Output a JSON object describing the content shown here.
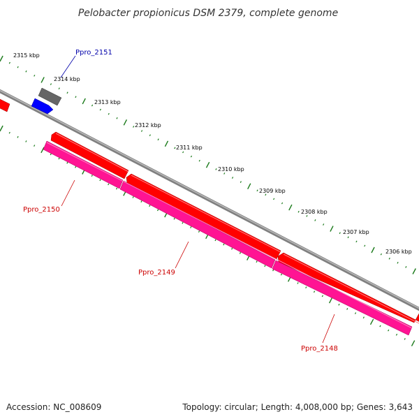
{
  "title": "Pelobacter propionicus DSM 2379, complete genome",
  "footer": {
    "accession": "Accession: NC_008609",
    "summary": "Topology: circular; Length: 4,008,000 bp; Genes: 3,643"
  },
  "ticks": [
    {
      "label": "2315 kbp"
    },
    {
      "label": "2314 kbp"
    },
    {
      "label": "2313 kbp"
    },
    {
      "label": "2312 kbp"
    },
    {
      "label": "2311 kbp"
    },
    {
      "label": "2310 kbp"
    },
    {
      "label": "2309 kbp"
    },
    {
      "label": "2308 kbp"
    },
    {
      "label": "2307 kbp"
    },
    {
      "label": "2306 kbp"
    }
  ],
  "genes": [
    {
      "name": "Ppro_2151",
      "color": "#0000aa"
    },
    {
      "name": "Ppro_2150",
      "color": "#cc0000"
    },
    {
      "name": "Ppro_2149",
      "color": "#cc0000"
    },
    {
      "name": "Ppro_2148",
      "color": "#cc0000"
    }
  ],
  "colors": {
    "backbone": "#808080",
    "cds_forward": "#ff0000",
    "cds_reverse": "#ff1493",
    "tick_marks": "#1a7a1a",
    "small_gene_blue": "#0000ff",
    "small_gene_gray": "#666666"
  }
}
